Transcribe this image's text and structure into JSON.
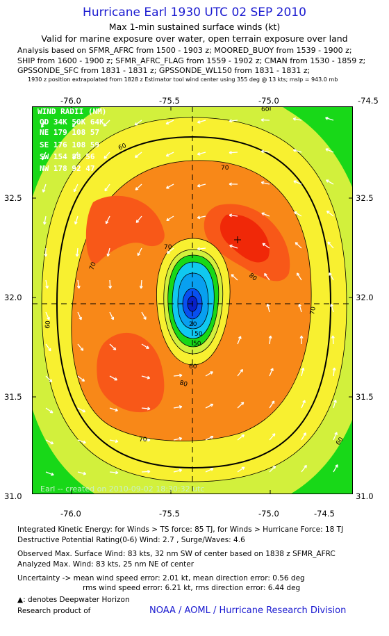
{
  "header": {
    "title": "Hurricane Earl 1930 UTC 02 SEP 2010",
    "subtitle": "Max 1-min sustained surface winds (kt)",
    "validity": "Valid for marine exposure over water, open terrain exposure over land",
    "analysis_lines": [
      "Analysis based on SFMR_AFRC from 1500 - 1903 z; MOORED_BUOY from 1539 - 1900 z;",
      "SHIP from 1600 - 1900 z; SFMR_AFRC_FLAG from 1559 - 1902 z; CMAN from 1530 - 1859 z;",
      "GPSSONDE_SFC from 1831 - 1831 z; GPSSONDE_WL150 from 1831 - 1831 z;"
    ],
    "position_note": "1930 z position extrapolated from 1828 z Estimator tool wind center using 355 deg @ 13 kts; mslp = 943.0 mb"
  },
  "map": {
    "lon_ticks": [
      "-76.0",
      "-75.5",
      "-75.0",
      "-74.5"
    ],
    "lat_ticks": [
      "32.5",
      "32.0",
      "31.5",
      "31.0"
    ],
    "center": {
      "lon": -75.25,
      "lat": 31.96
    },
    "max_marker": {
      "lon": -74.95,
      "lat": 32.29
    },
    "contour_labels": [
      "80",
      "70",
      "70",
      "70",
      "70",
      "70",
      "60",
      "60",
      "60",
      "60",
      "60",
      "60",
      "50",
      "50",
      "20",
      "80"
    ],
    "credit": "Earl -- created on 2010-09-02 18:30:32 utc",
    "colors": {
      "green": "#18d818",
      "light_green": "#88f060",
      "yellow_green": "#d2f03c",
      "yellow": "#f8f030",
      "orange": "#f88818",
      "red_orange": "#f85818",
      "red": "#f02808",
      "cyan": "#10c8f0",
      "blue": "#0850f0"
    }
  },
  "wind_radii": {
    "title": "WIND RADII (NM)",
    "header": "QD 34K 50K 64K",
    "rows": [
      "NE 179 108  57",
      "SE 176 108  59",
      "SW 154  88  56",
      "NW 178  92  47"
    ]
  },
  "footer": {
    "ike": "Integrated Kinetic Energy:  for Winds > TS force: 85 TJ,  for Winds > Hurricane Force: 18 TJ",
    "dpr": "Destructive Potential Rating(0-6)   Wind: 2.7 , Surge/Waves: 4.6",
    "observed": "Observed Max. Surface Wind: 83 kts, 32 nm SW of center based on 1838 z SFMR_AFRC",
    "analyzed": "Analyzed Max. Wind: 83 kts, 25 nm NE of center",
    "uncertainty_1": "Uncertainty -> mean wind speed error: 2.01 kt,   mean direction error: 0.56 deg",
    "uncertainty_2": "rms wind speed error: 6.21 kt,    rms direction error: 6.44 deg",
    "deepwater": ": denotes Deepwater Horizon",
    "research": "Research product of",
    "noaa": "NOAA / AOML / Hurricane Research Division"
  }
}
